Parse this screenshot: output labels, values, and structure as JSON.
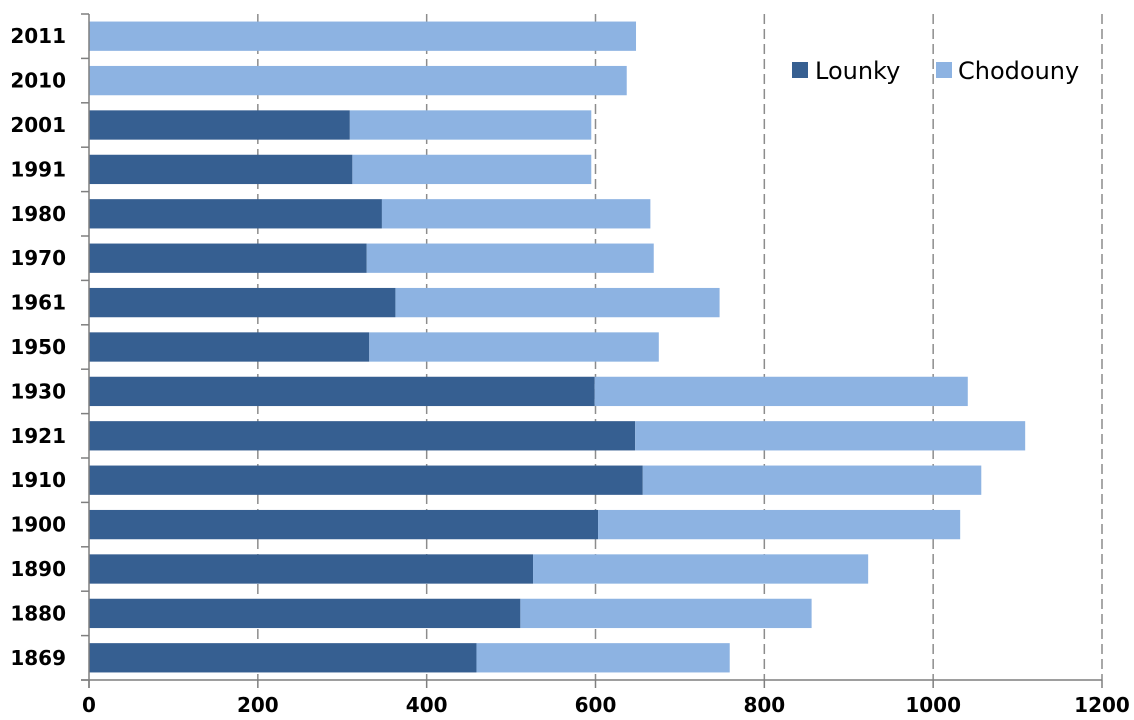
{
  "chart_data": {
    "type": "bar",
    "orientation": "horizontal",
    "stacked": true,
    "categories": [
      "2011",
      "2010",
      "2001",
      "1991",
      "1980",
      "1970",
      "1961",
      "1950",
      "1930",
      "1921",
      "1910",
      "1900",
      "1890",
      "1880",
      "1869"
    ],
    "series": [
      {
        "name": "Lounky",
        "color": "#365f91",
        "values": [
          0,
          0,
          309,
          312,
          347,
          329,
          363,
          332,
          599,
          647,
          656,
          603,
          526,
          511,
          459
        ]
      },
      {
        "name": "Chodouny",
        "color": "#8db3e2",
        "values": [
          648,
          637,
          286,
          283,
          318,
          340,
          384,
          343,
          442,
          462,
          401,
          429,
          397,
          345,
          300
        ]
      }
    ],
    "xlim": [
      0,
      1200
    ],
    "xticks": [
      "0",
      "200",
      "400",
      "600",
      "800",
      "1000",
      "1200"
    ],
    "xtick_values": [
      0,
      200,
      400,
      600,
      800,
      1000,
      1200
    ],
    "grid": "vertical dashed",
    "legend": "top-right"
  }
}
